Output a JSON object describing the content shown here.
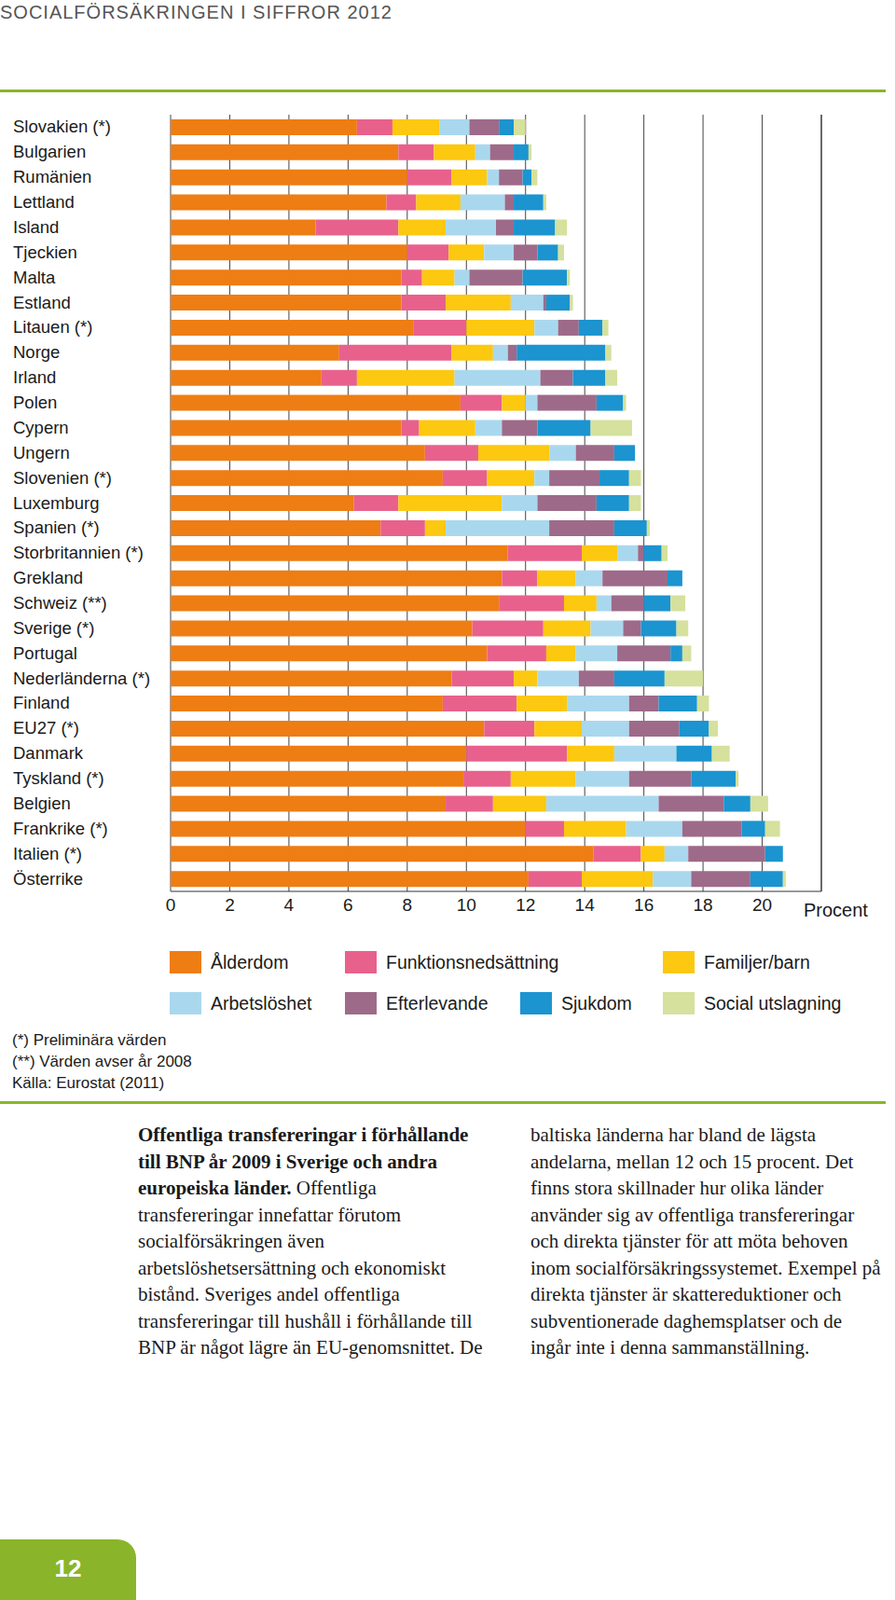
{
  "header": {
    "title": "SOCIALFÖRSÄKRINGEN I SIFFROR 2012"
  },
  "chart_data": {
    "type": "bar",
    "orientation": "horizontal",
    "stacked": true,
    "grid": true,
    "x_label": "Procent",
    "xlim": [
      0,
      22
    ],
    "xticks": [
      0,
      2,
      4,
      6,
      8,
      10,
      12,
      14,
      16,
      18,
      20
    ],
    "categories": [
      "Slovakien (*)",
      "Bulgarien",
      "Rumänien",
      "Lettland",
      "Island",
      "Tjeckien",
      "Malta",
      "Estland",
      "Litauen (*)",
      "Norge",
      "Irland",
      "Polen",
      "Cypern",
      "Ungern",
      "Slovenien (*)",
      "Luxemburg",
      "Spanien (*)",
      "Storbritannien (*)",
      "Grekland",
      "Schweiz (**)",
      "Sverige (*)",
      "Portugal",
      "Nederländerna (*)",
      "Finland",
      "EU27 (*)",
      "Danmark",
      "Tyskland (*)",
      "Belgien",
      "Frankrike (*)",
      "Italien (*)",
      "Österrike"
    ],
    "series": [
      {
        "name": "Ålderdom",
        "color": "#ee7d14",
        "values": [
          6.3,
          7.7,
          8.0,
          7.3,
          4.9,
          8.0,
          7.8,
          7.8,
          8.2,
          5.7,
          5.1,
          9.8,
          7.8,
          8.6,
          9.2,
          6.2,
          7.1,
          11.4,
          11.2,
          11.1,
          10.2,
          10.7,
          9.5,
          9.2,
          10.6,
          10.0,
          9.9,
          9.3,
          12.0,
          14.3,
          12.1
        ]
      },
      {
        "name": "Funktionsnedsättning",
        "color": "#e8618c",
        "values": [
          1.2,
          1.2,
          1.5,
          1.0,
          2.8,
          1.4,
          0.7,
          1.5,
          1.8,
          3.8,
          1.2,
          1.4,
          0.6,
          1.8,
          1.5,
          1.5,
          1.5,
          2.5,
          1.2,
          2.2,
          2.4,
          2.0,
          2.1,
          2.5,
          1.7,
          3.4,
          1.6,
          1.6,
          1.3,
          1.6,
          1.8
        ]
      },
      {
        "name": "Familjer/barn",
        "color": "#fcc810",
        "values": [
          1.6,
          1.4,
          1.2,
          1.5,
          1.6,
          1.2,
          1.1,
          2.2,
          2.3,
          1.4,
          3.3,
          0.8,
          1.9,
          2.4,
          1.6,
          3.5,
          0.7,
          1.2,
          1.3,
          1.1,
          1.6,
          1.0,
          0.8,
          1.7,
          1.6,
          1.6,
          2.2,
          1.8,
          2.1,
          0.8,
          2.4
        ]
      },
      {
        "name": "Arbetslöshet",
        "color": "#a9d8ee",
        "values": [
          1.0,
          0.5,
          0.4,
          1.5,
          1.7,
          1.0,
          0.5,
          1.1,
          0.8,
          0.5,
          2.9,
          0.4,
          0.9,
          0.9,
          0.5,
          1.2,
          3.5,
          0.7,
          0.9,
          0.5,
          1.1,
          1.4,
          1.4,
          2.1,
          1.6,
          2.1,
          1.8,
          3.8,
          1.9,
          0.8,
          1.3
        ]
      },
      {
        "name": "Efterlevande",
        "color": "#9e6a89",
        "values": [
          1.0,
          0.8,
          0.8,
          0.3,
          0.6,
          0.8,
          1.8,
          0.1,
          0.7,
          0.3,
          1.1,
          2.0,
          1.2,
          1.3,
          1.7,
          2.0,
          2.2,
          0.2,
          2.2,
          1.1,
          0.6,
          1.8,
          1.2,
          1.0,
          1.7,
          0.0,
          2.1,
          2.2,
          2.0,
          2.6,
          2.0
        ]
      },
      {
        "name": "Sjukdom",
        "color": "#1b94d0",
        "values": [
          0.5,
          0.5,
          0.3,
          1.0,
          1.4,
          0.7,
          1.5,
          0.8,
          0.8,
          3.0,
          1.1,
          0.9,
          1.8,
          0.7,
          1.0,
          1.1,
          1.1,
          0.6,
          0.5,
          0.9,
          1.2,
          0.4,
          1.7,
          1.3,
          1.0,
          1.2,
          1.5,
          0.9,
          0.8,
          0.6,
          1.1
        ]
      },
      {
        "name": "Social utslagning",
        "color": "#d5e19c",
        "values": [
          0.4,
          0.1,
          0.2,
          0.1,
          0.4,
          0.2,
          0.1,
          0.1,
          0.2,
          0.2,
          0.4,
          0.1,
          1.4,
          0.0,
          0.4,
          0.4,
          0.1,
          0.2,
          0.0,
          0.5,
          0.4,
          0.3,
          1.3,
          0.4,
          0.3,
          0.6,
          0.1,
          0.6,
          0.5,
          0.0,
          0.1
        ]
      }
    ]
  },
  "notes": [
    "(*) Preliminära värden",
    "(**) Värden avser år 2008",
    "Källa: Eurostat (2011)"
  ],
  "caption": {
    "title": "Offentliga transfereringar i förhållande till BNP år 2009 i Sverige och andra europeiska länder.",
    "text": "Offentliga transfereringar innefattar förutom socialförsäkringen även arbetslöshetsersättning och ekonomiskt bistånd. Sveriges andel offentliga transfereringar till hushåll i förhållande till BNP är något lägre än EU-genomsnittet. De baltiska länderna har bland de lägsta andelarna, mellan 12 och 15 procent. Det finns stora skillnader hur olika länder använder sig av offentliga transfereringar och direkta tjänster för att möta behoven inom socialförsäkringssystemet. Exempel på direkta tjänster är skattereduktioner och subventionerade daghemsplatser och de ingår inte i denna sammanställning."
  },
  "page_number": "12"
}
